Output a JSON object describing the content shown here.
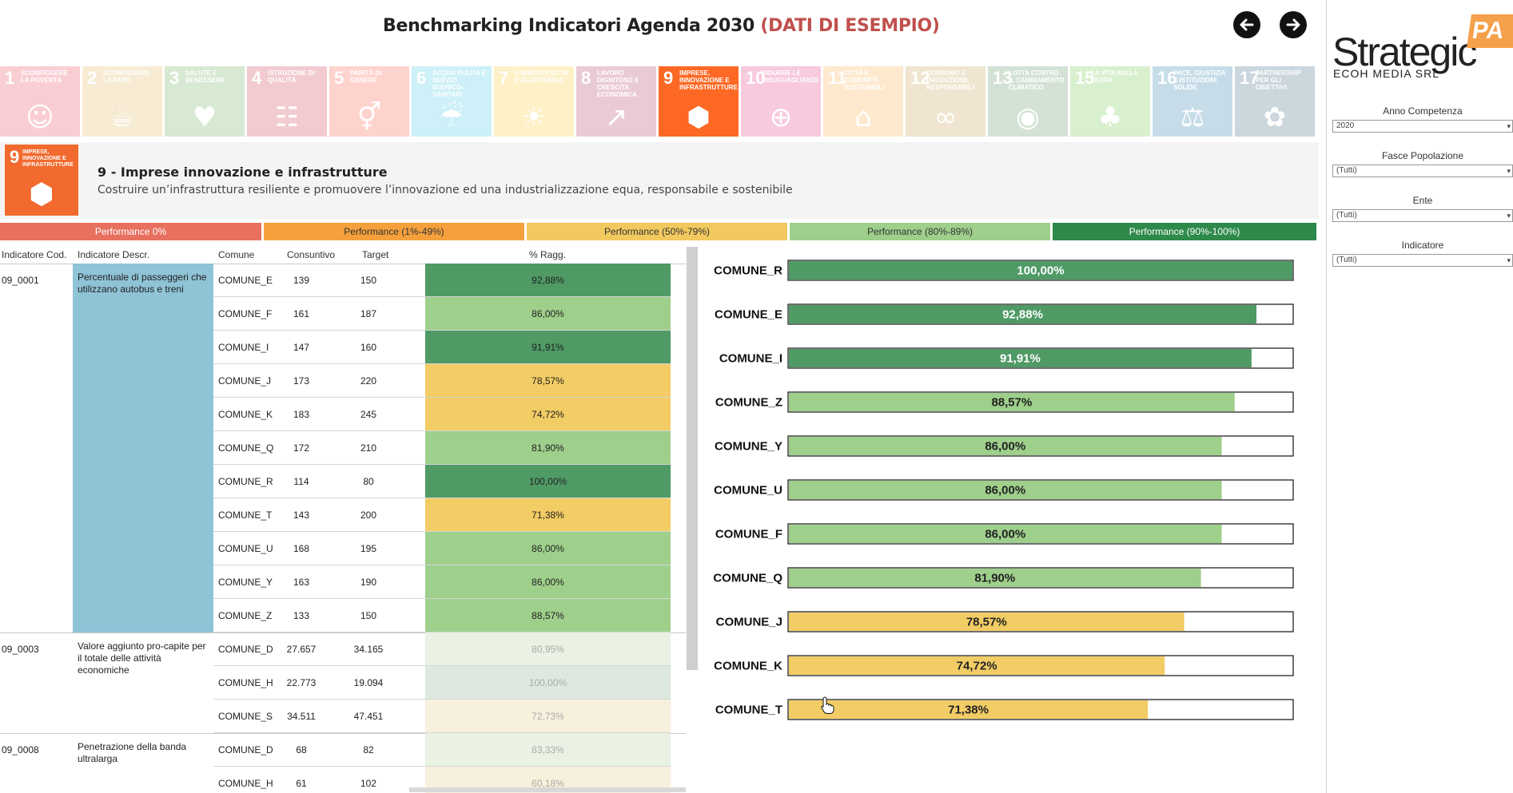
{
  "header": {
    "title": "Benchmarking Indicatori Agenda 2030",
    "title_accent": "(DATI DI ESEMPIO)"
  },
  "sdg_tiles": [
    {
      "num": "1",
      "label": "Sconfiggere la povertà",
      "color": "#e5243b",
      "glyph": "☺",
      "active": false
    },
    {
      "num": "2",
      "label": "Sconfiggere la fame",
      "color": "#dda63a",
      "glyph": "☕",
      "active": false
    },
    {
      "num": "3",
      "label": "Salute e benessere",
      "color": "#4c9f38",
      "glyph": "♥",
      "active": false
    },
    {
      "num": "4",
      "label": "Istruzione di qualità",
      "color": "#c5192d",
      "glyph": "☷",
      "active": false
    },
    {
      "num": "5",
      "label": "Parità di genere",
      "color": "#ff3a21",
      "glyph": "⚥",
      "active": false
    },
    {
      "num": "6",
      "label": "Acqua pulita e servizi igienico-sanitari",
      "color": "#26bde2",
      "glyph": "☔",
      "active": false
    },
    {
      "num": "7",
      "label": "Energia pulita e accessibile",
      "color": "#fcc30b",
      "glyph": "☀",
      "active": false
    },
    {
      "num": "8",
      "label": "Lavoro dignitoso e crescita economica",
      "color": "#a21942",
      "glyph": "↗",
      "active": false
    },
    {
      "num": "9",
      "label": "Imprese, innovazione e infrastrutture",
      "color": "#fd6925",
      "glyph": "⬢",
      "active": true
    },
    {
      "num": "10",
      "label": "Ridurre le disuguaglianze",
      "color": "#dd1367",
      "glyph": "⊕",
      "active": false
    },
    {
      "num": "11",
      "label": "Città e comunità sostenibili",
      "color": "#fd9d24",
      "glyph": "⌂",
      "active": false
    },
    {
      "num": "12",
      "label": "Consumo e produzione responsabili",
      "color": "#bf8b2e",
      "glyph": "∞",
      "active": false
    },
    {
      "num": "13",
      "label": "Lotta contro il cambiamento climatico",
      "color": "#3f7e44",
      "glyph": "◉",
      "active": false
    },
    {
      "num": "15",
      "label": "La vita sulla terra",
      "color": "#56c02b",
      "glyph": "♣",
      "active": false
    },
    {
      "num": "16",
      "label": "Pace, giustizia e istituzioni solide",
      "color": "#00689d",
      "glyph": "⚖",
      "active": false
    },
    {
      "num": "17",
      "label": "Partnership per gli obiettivi",
      "color": "#19486a",
      "glyph": "✿",
      "active": false
    }
  ],
  "goal": {
    "icon_num": "9",
    "icon_text": "IMPRESE, INNOVAZIONE E INFRASTRUTTURE",
    "title": "9 - Imprese innovazione e infrastrutture",
    "description": "Costruire un’infrastruttura resiliente e promuovere l’innovazione ed una industrializzazione equa, responsabile e sostenibile"
  },
  "legend": [
    {
      "label": "Performance 0%",
      "color": "#e8705f",
      "text_color": "#ffffff"
    },
    {
      "label": "Performance (1%-49%)",
      "color": "#f5a03c",
      "text_color": "#333333"
    },
    {
      "label": "Performance (50%-79%)",
      "color": "#f2c95f",
      "text_color": "#333333"
    },
    {
      "label": "Performance (80%-89%)",
      "color": "#9ecf8b",
      "text_color": "#333333"
    },
    {
      "label": "Performance (90%-100%)",
      "color": "#2e8a4b",
      "text_color": "#ffffff"
    }
  ],
  "table": {
    "headers": {
      "code": "Indicatore Cod.",
      "descr": "Indicatore Descr.",
      "comune": "Comune",
      "consuntivo": "Consuntivo",
      "target": "Target",
      "perc": "% Ragg."
    },
    "groups": [
      {
        "code": "09_0001",
        "descr": "Percentuale di passeggeri che utilizzano autobus e treni",
        "rows": [
          {
            "comune": "COMUNE_E",
            "consuntivo": "139",
            "target": "150",
            "perc": "92,88%",
            "color": "#4f9a65"
          },
          {
            "comune": "COMUNE_F",
            "consuntivo": "161",
            "target": "187",
            "perc": "86,00%",
            "color": "#9ecf8b"
          },
          {
            "comune": "COMUNE_I",
            "consuntivo": "147",
            "target": "160",
            "perc": "91,91%",
            "color": "#4f9a65"
          },
          {
            "comune": "COMUNE_J",
            "consuntivo": "173",
            "target": "220",
            "perc": "78,57%",
            "color": "#f2cc64"
          },
          {
            "comune": "COMUNE_K",
            "consuntivo": "183",
            "target": "245",
            "perc": "74,72%",
            "color": "#f2cc64"
          },
          {
            "comune": "COMUNE_Q",
            "consuntivo": "172",
            "target": "210",
            "perc": "81,90%",
            "color": "#9ecf8b"
          },
          {
            "comune": "COMUNE_R",
            "consuntivo": "114",
            "target": "80",
            "perc": "100,00%",
            "color": "#4f9a65"
          },
          {
            "comune": "COMUNE_T",
            "consuntivo": "143",
            "target": "200",
            "perc": "71,38%",
            "color": "#f2cc64"
          },
          {
            "comune": "COMUNE_U",
            "consuntivo": "168",
            "target": "195",
            "perc": "86,00%",
            "color": "#9ecf8b"
          },
          {
            "comune": "COMUNE_Y",
            "consuntivo": "163",
            "target": "190",
            "perc": "86,00%",
            "color": "#9ecf8b"
          },
          {
            "comune": "COMUNE_Z",
            "consuntivo": "133",
            "target": "150",
            "perc": "88,57%",
            "color": "#9ecf8b"
          }
        ]
      },
      {
        "code": "09_0003",
        "descr": "Valore aggiunto pro-capite per il totale delle attività economiche",
        "rows": [
          {
            "comune": "COMUNE_D",
            "consuntivo": "27.657",
            "target": "34.165",
            "perc": "80,95%",
            "color": "#e9f2e3"
          },
          {
            "comune": "COMUNE_H",
            "consuntivo": "22.773",
            "target": "19.094",
            "perc": "100,00%",
            "color": "#dde8df"
          },
          {
            "comune": "COMUNE_S",
            "consuntivo": "34.511",
            "target": "47.451",
            "perc": "72,73%",
            "color": "#f7f0dc"
          }
        ]
      },
      {
        "code": "09_0008",
        "descr": "Penetrazione della banda ultralarga",
        "rows": [
          {
            "comune": "COMUNE_D",
            "consuntivo": "68",
            "target": "82",
            "perc": "83,33%",
            "color": "#e9f2e3"
          },
          {
            "comune": "COMUNE_H",
            "consuntivo": "61",
            "target": "102",
            "perc": "60,18%",
            "color": "#f7f0dc"
          }
        ]
      }
    ]
  },
  "chart_data": {
    "type": "bar",
    "orientation": "horizontal",
    "categories": [
      "COMUNE_R",
      "COMUNE_E",
      "COMUNE_I",
      "COMUNE_Z",
      "COMUNE_Y",
      "COMUNE_U",
      "COMUNE_F",
      "COMUNE_Q",
      "COMUNE_J",
      "COMUNE_K",
      "COMUNE_T"
    ],
    "values": [
      100.0,
      92.88,
      91.91,
      88.57,
      86.0,
      86.0,
      86.0,
      81.9,
      78.57,
      74.72,
      71.38
    ],
    "value_labels": [
      "100,00%",
      "92,88%",
      "91,91%",
      "88,57%",
      "86,00%",
      "86,00%",
      "86,00%",
      "81,90%",
      "78,57%",
      "74,72%",
      "71,38%"
    ],
    "colors": [
      "#4f9a65",
      "#4f9a65",
      "#4f9a65",
      "#9ecf8b",
      "#9ecf8b",
      "#9ecf8b",
      "#9ecf8b",
      "#9ecf8b",
      "#f2cc64",
      "#f2cc64",
      "#f2cc64"
    ],
    "label_colors": [
      "#ffffff",
      "#ffffff",
      "#ffffff",
      "#222222",
      "#222222",
      "#222222",
      "#222222",
      "#222222",
      "#222222",
      "#222222",
      "#222222"
    ],
    "xlim": [
      0,
      100
    ]
  },
  "side": {
    "logo_main": "Strategic",
    "logo_badge": "PA",
    "logo_sub": "ECOH MEDIA SRL",
    "filters": [
      {
        "label": "Anno Competenza",
        "value": "2020"
      },
      {
        "label": "Fasce Popolazione",
        "value": "(Tutti)"
      },
      {
        "label": "Ente",
        "value": "(Tutti)"
      },
      {
        "label": "Indicatore",
        "value": "(Tutti)"
      }
    ]
  }
}
